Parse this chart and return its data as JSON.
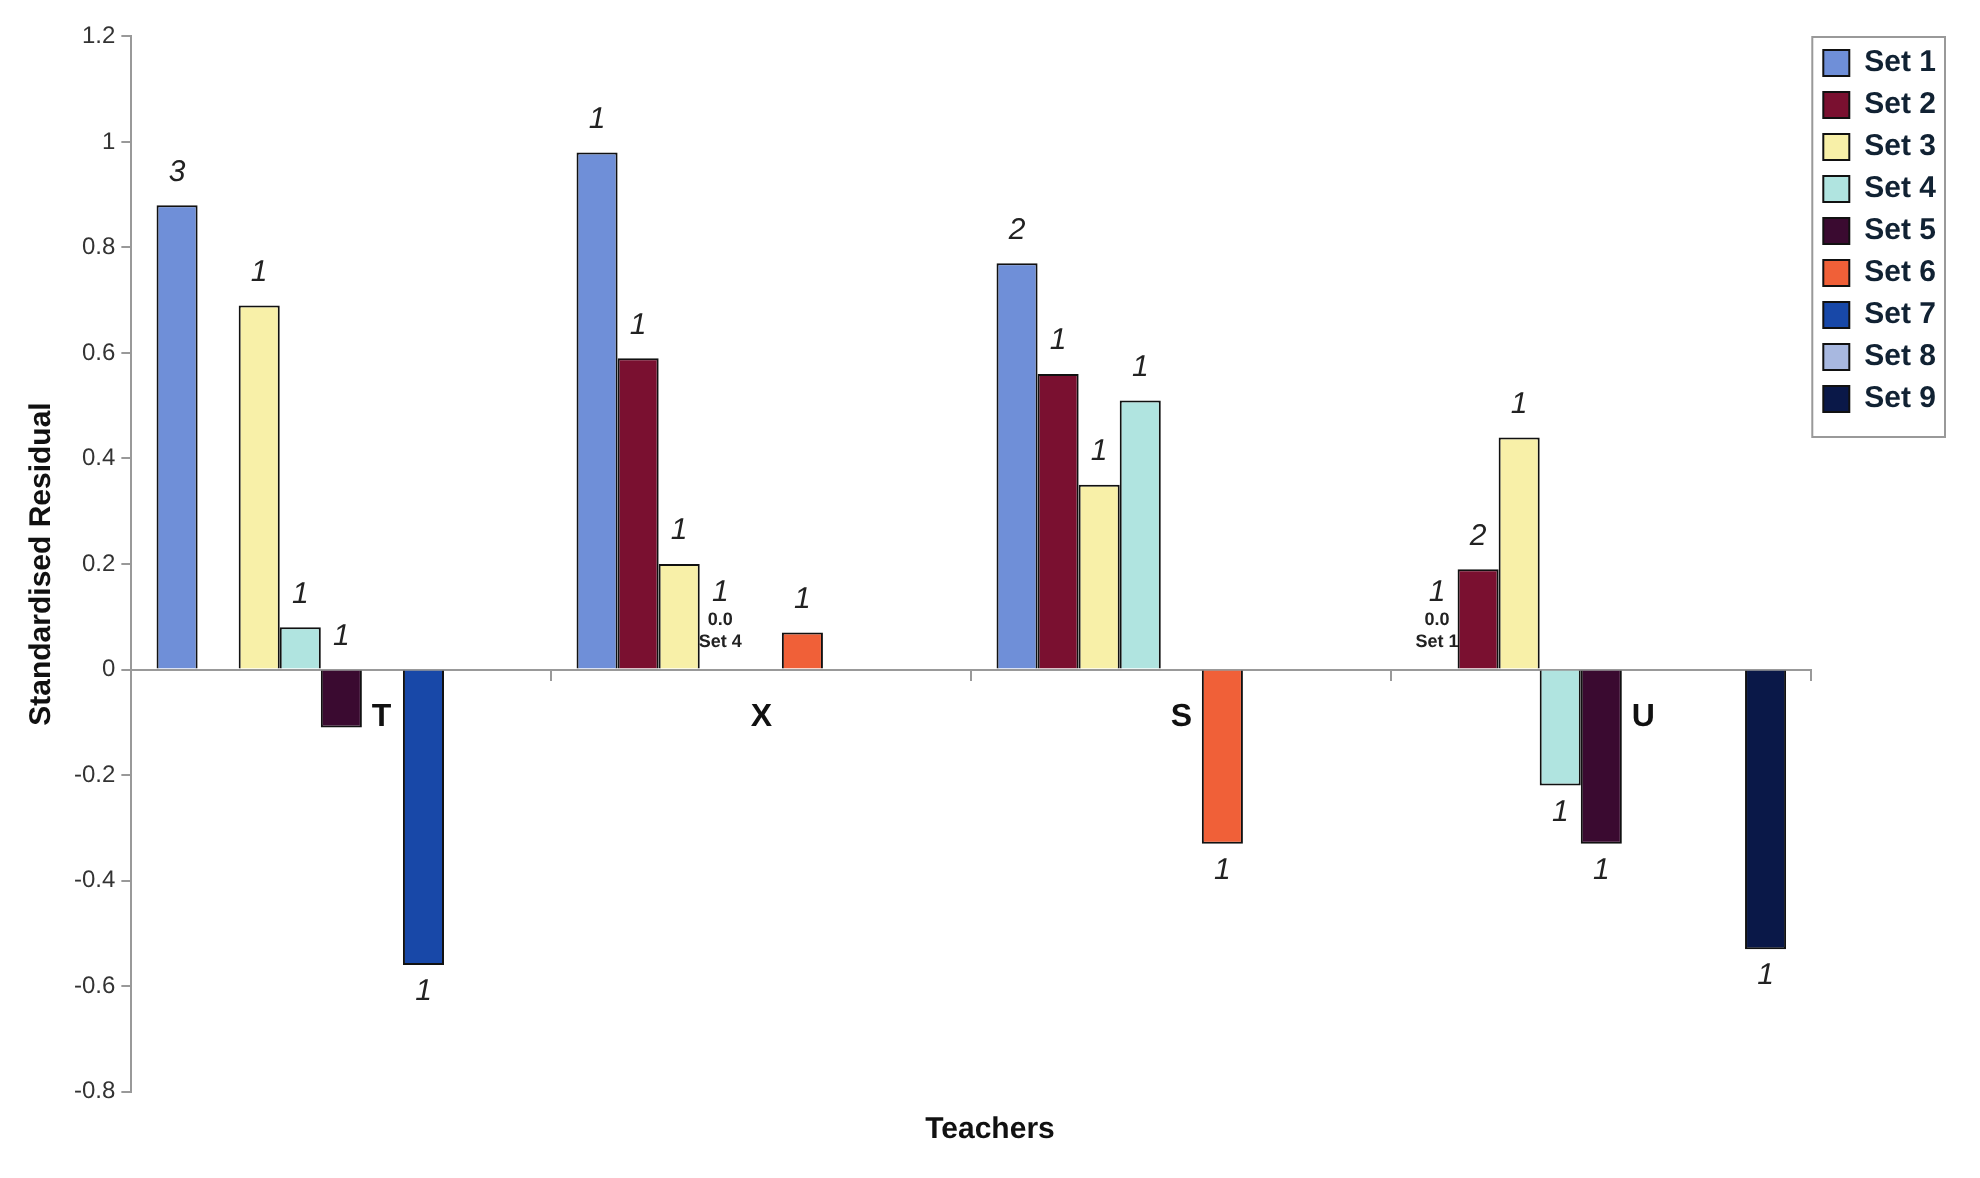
{
  "chart_data": {
    "type": "bar",
    "xlabel": "Teachers",
    "ylabel": "Standardised Residual",
    "categories": [
      "T",
      "X",
      "S",
      "U"
    ],
    "ylim": [
      -0.8,
      1.2
    ],
    "yticks": [
      -0.8,
      -0.6,
      -0.4,
      -0.2,
      0,
      0.2,
      0.4,
      0.6,
      0.8,
      1,
      1.2
    ],
    "grid": false,
    "legend": "top right",
    "series": [
      {
        "name": "Set 1",
        "color": "#6f8fd8",
        "values": [
          0.88,
          0.98,
          0.77,
          0.0
        ]
      },
      {
        "name": "Set 2",
        "color": "#7a1030",
        "values": [
          null,
          0.59,
          0.56,
          0.19
        ]
      },
      {
        "name": "Set 3",
        "color": "#f8f0a8",
        "values": [
          0.69,
          0.2,
          0.35,
          0.44
        ]
      },
      {
        "name": "Set 4",
        "color": "#b0e4e0",
        "values": [
          0.08,
          0.0,
          0.51,
          -0.22
        ]
      },
      {
        "name": "Set 5",
        "color": "#3a0a30",
        "values": [
          -0.11,
          null,
          null,
          -0.33
        ]
      },
      {
        "name": "Set 6",
        "color": "#f06038",
        "values": [
          null,
          0.07,
          -0.33,
          null
        ]
      },
      {
        "name": "Set 7",
        "color": "#1848a8",
        "values": [
          -0.56,
          null,
          null,
          null
        ]
      },
      {
        "name": "Set 8",
        "color": "#a8b8e0",
        "values": [
          null,
          null,
          null,
          null
        ]
      },
      {
        "name": "Set 9",
        "color": "#0a1848",
        "values": [
          null,
          null,
          null,
          -0.53
        ]
      }
    ],
    "annotations": [
      "3",
      "1",
      "1",
      "1",
      "1",
      "1",
      "1",
      "1",
      "1\n0.0\nSet 4",
      "1",
      "2",
      "1",
      "1",
      "1",
      "1",
      "1\n0.0\nSet 1",
      "2",
      "1",
      "1",
      "1",
      "1"
    ]
  }
}
